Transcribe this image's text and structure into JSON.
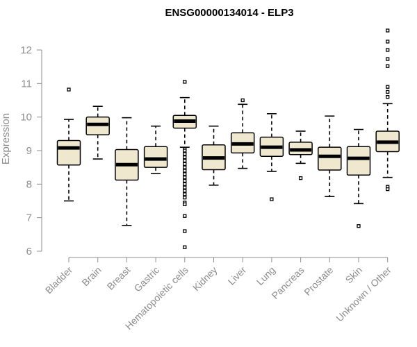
{
  "chart_data": {
    "type": "boxplot",
    "title": "ENSG00000134014 - ELP3",
    "ylabel": "Expression",
    "xlabel": "",
    "ylim": [
      6,
      12.8
    ],
    "yticks": [
      6,
      7,
      8,
      9,
      10,
      11,
      12
    ],
    "grid": false,
    "box_color": "#efe8cf",
    "categories": [
      "Bladder",
      "Brain",
      "Breast",
      "Gastric",
      "Hematopoietic cells",
      "Kidney",
      "Liver",
      "Lung",
      "Pancreas",
      "Prostate",
      "Skin",
      "Unknown / Other"
    ],
    "boxes": [
      {
        "whisker_low": 7.5,
        "q1": 8.57,
        "median": 9.08,
        "q3": 9.3,
        "whisker_high": 9.93,
        "outliers": [
          10.82
        ]
      },
      {
        "whisker_low": 8.75,
        "q1": 9.47,
        "median": 9.78,
        "q3": 10.0,
        "whisker_high": 10.32,
        "outliers": []
      },
      {
        "whisker_low": 6.77,
        "q1": 8.12,
        "median": 8.58,
        "q3": 9.03,
        "whisker_high": 9.98,
        "outliers": []
      },
      {
        "whisker_low": 8.32,
        "q1": 8.5,
        "median": 8.75,
        "q3": 9.12,
        "whisker_high": 9.73,
        "outliers": []
      },
      {
        "whisker_low": 9.1,
        "q1": 9.67,
        "median": 9.88,
        "q3": 10.05,
        "whisker_high": 10.58,
        "outliers": [
          11.05,
          9.05,
          9.0,
          8.9,
          8.8,
          8.7,
          8.6,
          8.5,
          8.4,
          8.3,
          8.2,
          8.1,
          8.0,
          7.9,
          7.8,
          7.7,
          7.6,
          7.45,
          7.4,
          7.05,
          6.6,
          6.12
        ]
      },
      {
        "whisker_low": 7.97,
        "q1": 8.43,
        "median": 8.78,
        "q3": 9.17,
        "whisker_high": 9.73,
        "outliers": []
      },
      {
        "whisker_low": 8.47,
        "q1": 8.93,
        "median": 9.2,
        "q3": 9.53,
        "whisker_high": 10.38,
        "outliers": [
          10.5
        ]
      },
      {
        "whisker_low": 8.38,
        "q1": 8.83,
        "median": 9.1,
        "q3": 9.4,
        "whisker_high": 10.1,
        "outliers": [
          7.55
        ]
      },
      {
        "whisker_low": 8.62,
        "q1": 8.88,
        "median": 9.02,
        "q3": 9.25,
        "whisker_high": 9.58,
        "outliers": [
          8.18
        ]
      },
      {
        "whisker_low": 7.63,
        "q1": 8.42,
        "median": 8.83,
        "q3": 9.1,
        "whisker_high": 10.03,
        "outliers": []
      },
      {
        "whisker_low": 7.42,
        "q1": 8.27,
        "median": 8.77,
        "q3": 9.12,
        "whisker_high": 9.63,
        "outliers": [
          6.75
        ]
      },
      {
        "whisker_low": 8.2,
        "q1": 8.97,
        "median": 9.25,
        "q3": 9.58,
        "whisker_high": 10.4,
        "outliers": [
          12.58,
          12.25,
          12.0,
          11.73,
          11.52,
          10.9,
          10.75,
          10.6,
          7.92,
          7.85
        ]
      }
    ]
  }
}
